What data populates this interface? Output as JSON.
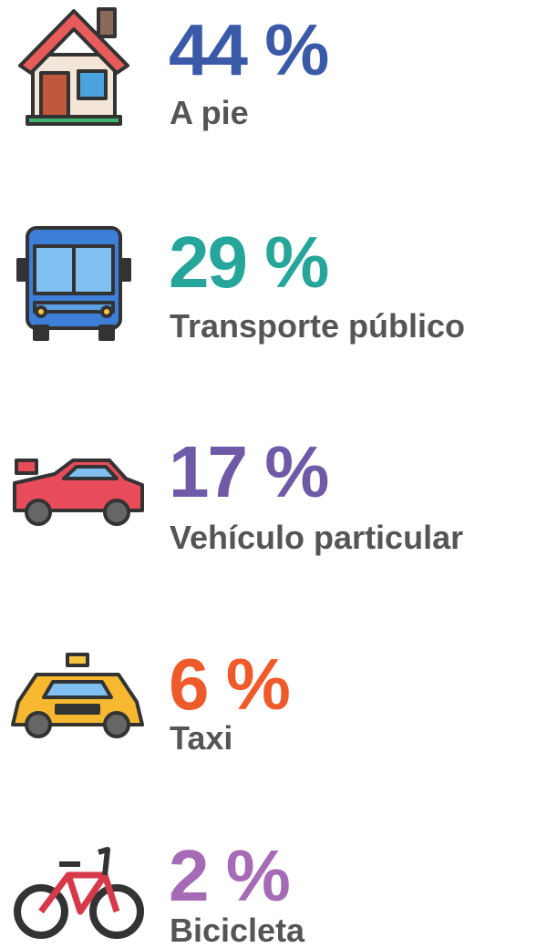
{
  "items": [
    {
      "value": "44 %",
      "label": "A pie"
    },
    {
      "value": "29 %",
      "label": "Transporte público"
    },
    {
      "value": "17 %",
      "label": "Vehículo particular"
    },
    {
      "value": "6 %",
      "label": "Taxi"
    },
    {
      "value": "2 %",
      "label": "Bicicleta"
    }
  ]
}
